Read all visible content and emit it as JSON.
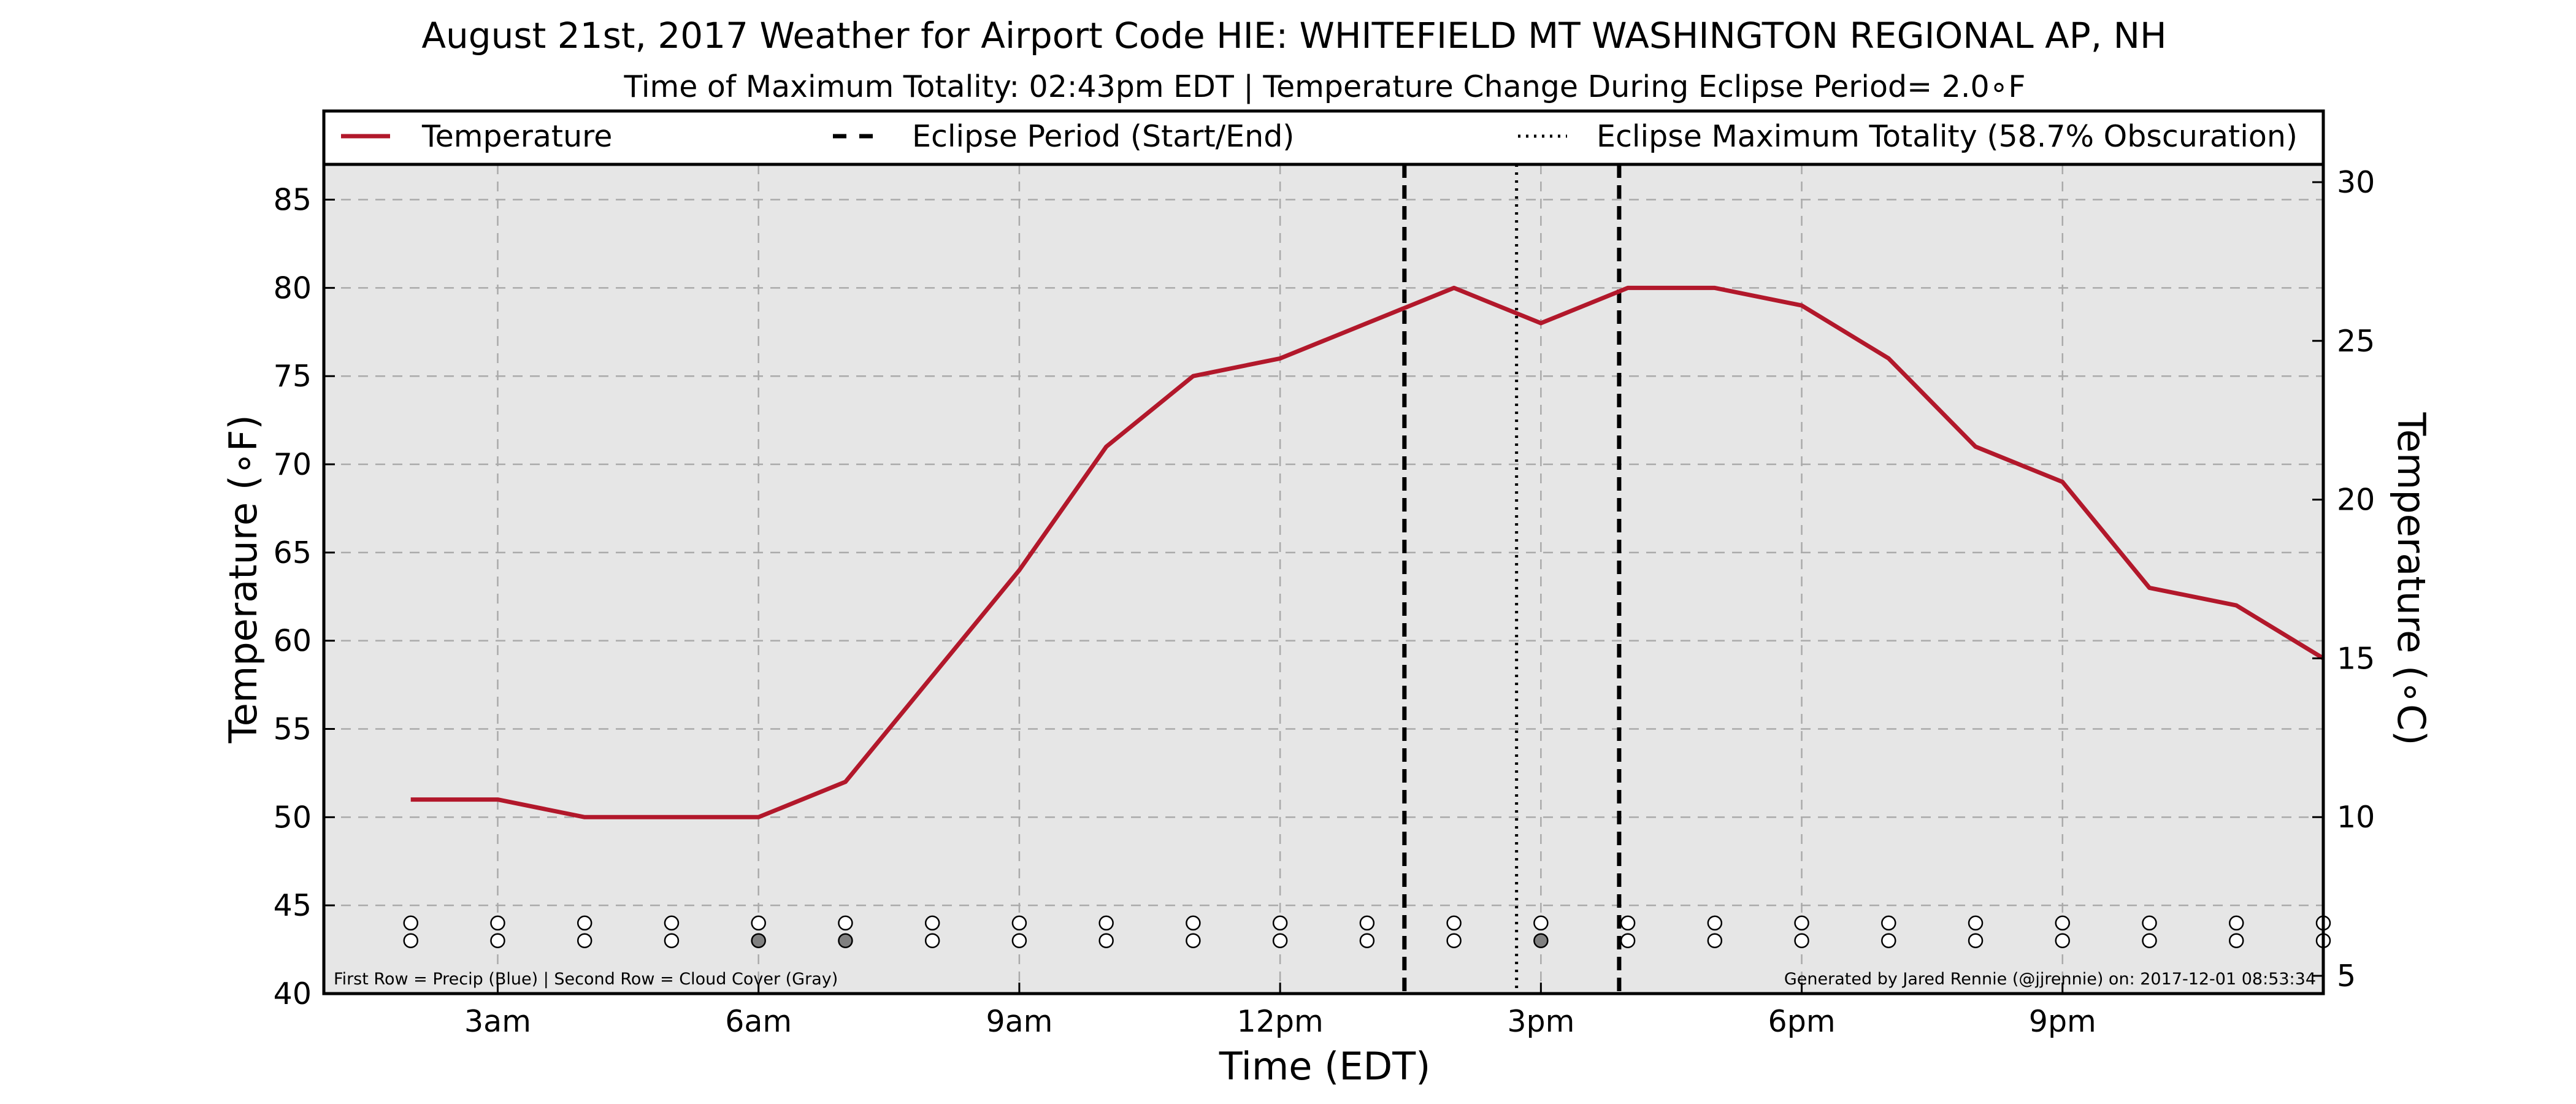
{
  "chart_data": {
    "type": "line",
    "title": "August 21st, 2017 Weather for Airport Code HIE: WHITEFIELD MT WASHINGTON REGIONAL AP, NH",
    "subtitle": "Time of Maximum Totality: 02:43pm EDT | Temperature Change During Eclipse Period= 2.0∘F",
    "xlabel": "Time (EDT)",
    "ylabel": "Temperature (∘F)",
    "ylabel_right": "Temperature (∘C)",
    "x_unit": "hours after midnight EDT",
    "xlim": [
      1.0,
      24.0
    ],
    "ylim": [
      40,
      87
    ],
    "ylim_right_c": [
      4.44,
      30.56
    ],
    "yticks": [
      40,
      45,
      50,
      55,
      60,
      65,
      70,
      75,
      80,
      85
    ],
    "yticks_right": [
      5,
      10,
      15,
      20,
      25,
      30
    ],
    "xticks": [
      {
        "x": 3,
        "label": "3am"
      },
      {
        "x": 6,
        "label": "6am"
      },
      {
        "x": 9,
        "label": "9am"
      },
      {
        "x": 12,
        "label": "12pm"
      },
      {
        "x": 15,
        "label": "3pm"
      },
      {
        "x": 18,
        "label": "6pm"
      },
      {
        "x": 21,
        "label": "9pm"
      }
    ],
    "grid": true,
    "background": "#e6e6e6",
    "legend_placement": "top, above plot",
    "legend": [
      {
        "label": "Temperature",
        "style": "solid",
        "color": "#b2182b"
      },
      {
        "label": "Eclipse Period (Start/End)",
        "style": "dashed",
        "color": "#000000"
      },
      {
        "label": "Eclipse Maximum Totality (58.7% Obscuration)",
        "style": "dotted",
        "color": "#000000"
      }
    ],
    "series": [
      {
        "name": "Temperature",
        "color": "#b2182b",
        "x": [
          2,
          3,
          4,
          5,
          6,
          7,
          8,
          9,
          10,
          11,
          12,
          13,
          14,
          15,
          16,
          17,
          18,
          19,
          20,
          21,
          22,
          23,
          24
        ],
        "y": [
          51,
          51,
          50,
          50,
          50,
          52,
          58,
          64,
          71,
          75,
          76,
          78,
          80,
          78,
          80,
          80,
          79,
          76,
          71,
          69,
          63,
          62,
          59
        ]
      }
    ],
    "eclipse_start_x": 13.43,
    "eclipse_end_x": 15.9,
    "eclipse_max_x": 14.72,
    "markers": {
      "y_row_precip": 44.0,
      "y_row_cloud": 43.0,
      "x": [
        2,
        3,
        4,
        5,
        6,
        7,
        8,
        9,
        10,
        11,
        12,
        13,
        14,
        15,
        16,
        17,
        18,
        19,
        20,
        21,
        22,
        23,
        24
      ],
      "precip": [
        "none",
        "none",
        "none",
        "none",
        "none",
        "none",
        "none",
        "none",
        "none",
        "none",
        "none",
        "none",
        "none",
        "none",
        "none",
        "none",
        "none",
        "none",
        "none",
        "none",
        "none",
        "none",
        "none"
      ],
      "cloud": [
        "none",
        "none",
        "none",
        "none",
        "some",
        "some",
        "none",
        "none",
        "none",
        "none",
        "none",
        "none",
        "none",
        "some",
        "none",
        "none",
        "none",
        "none",
        "none",
        "none",
        "none",
        "none",
        "none"
      ]
    },
    "marker_colors": {
      "none": "#ffffff",
      "some": "#808080"
    },
    "annotation_left": "First Row = Precip (Blue) | Second Row = Cloud Cover (Gray)",
    "annotation_right": "Generated by Jared Rennie (@jjrennie) on: 2017-12-01 08:53:34"
  }
}
